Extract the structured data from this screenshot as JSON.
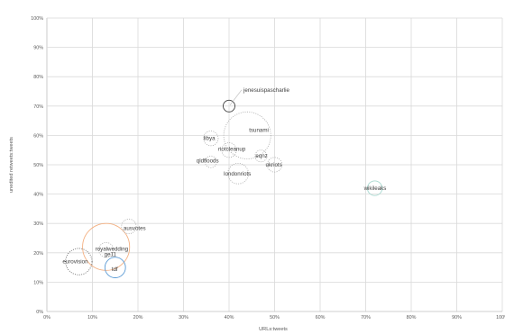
{
  "chart_data": {
    "type": "scatter",
    "xlabel": "URLs:tweets",
    "ylabel": "unedited retweets:tweets",
    "xlim": [
      0,
      100
    ],
    "ylim": [
      0,
      100
    ],
    "x_ticks": [
      "0%",
      "10%",
      "20%",
      "30%",
      "40%",
      "50%",
      "60%",
      "70%",
      "80%",
      "90%",
      "100%"
    ],
    "y_ticks": [
      "0%",
      "10%",
      "20%",
      "30%",
      "40%",
      "50%",
      "60%",
      "70%",
      "80%",
      "90%",
      "100%"
    ],
    "grid": true,
    "points": [
      {
        "label": "jenesuispascharlie",
        "x": 40,
        "y": 70,
        "size": 2,
        "color": "#404040",
        "style": "solid"
      },
      {
        "label": "tsunami",
        "x": 44,
        "y": 60,
        "size": 8,
        "color": "#a6a6a6",
        "style": "dotted"
      },
      {
        "label": "libya",
        "x": 36,
        "y": 59,
        "size": 2.5,
        "color": "#a6a6a6",
        "style": "dotted"
      },
      {
        "label": "riotcleanup",
        "x": 40,
        "y": 55,
        "size": 2.5,
        "color": "#a6a6a6",
        "style": "dotted"
      },
      {
        "label": "eqnz",
        "x": 47,
        "y": 53,
        "size": 2,
        "color": "#a6a6a6",
        "style": "dotted"
      },
      {
        "label": "qldfloods",
        "x": 36,
        "y": 51,
        "size": 2,
        "color": "#a6a6a6",
        "style": "dotted"
      },
      {
        "label": "ukriots",
        "x": 50,
        "y": 50,
        "size": 2.5,
        "color": "#a6a6a6",
        "style": "dotted"
      },
      {
        "label": "londonriots",
        "x": 42,
        "y": 47,
        "size": 3.5,
        "color": "#a6a6a6",
        "style": "dotted"
      },
      {
        "label": "wikileaks",
        "x": 72,
        "y": 42,
        "size": 2.5,
        "color": "#a9d9d0",
        "style": "solid"
      },
      {
        "label": "ge11",
        "x": 13,
        "y": 22,
        "size": 8,
        "color": "#f4b183",
        "style": "solid"
      },
      {
        "label": "ausvotes",
        "x": 18,
        "y": 29,
        "size": 2.5,
        "color": "#a6a6a6",
        "style": "dotted"
      },
      {
        "label": "royalwedding",
        "x": 13,
        "y": 21,
        "size": 2.5,
        "color": "#a6a6a6",
        "style": "dotted"
      },
      {
        "label": "eurovision",
        "x": 7,
        "y": 17,
        "size": 4.5,
        "color": "#595959",
        "style": "dotted"
      },
      {
        "label": "tdf",
        "x": 15,
        "y": 15,
        "size": 3.5,
        "color": "#5b9bd5",
        "style": "solid"
      }
    ]
  }
}
